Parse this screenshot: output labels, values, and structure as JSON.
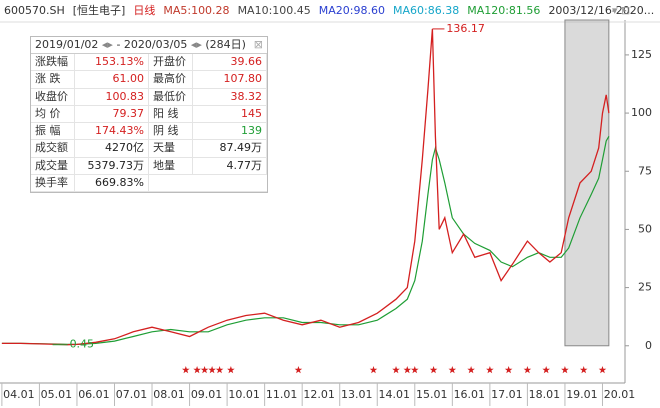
{
  "header": {
    "items": [
      {
        "text": "600570.SH",
        "color": "#333"
      },
      {
        "text": "[恒生电子]",
        "color": "#333"
      },
      {
        "text": "日线",
        "color": "#d42020"
      },
      {
        "text": "MA5:100.28",
        "color": "#c0392b"
      },
      {
        "text": "MA10:100.45",
        "color": "#444"
      },
      {
        "text": "MA20:98.60",
        "color": "#2a3fd0"
      },
      {
        "text": "MA60:86.38",
        "color": "#16a6c9"
      },
      {
        "text": "MA120:81.56",
        "color": "#1f9e35"
      },
      {
        "text": "2003/12/16-2020...",
        "color": "#333"
      }
    ]
  },
  "table": {
    "start": "2019/01/02",
    "end": "2020/03/05",
    "days": "(284日)",
    "rows": [
      [
        "涨跌幅",
        "153.13%",
        "开盘价",
        "39.66"
      ],
      [
        "涨 跌",
        "61.00",
        "最高价",
        "107.80"
      ],
      [
        "收盘价",
        "100.83",
        "最低价",
        "38.32"
      ],
      [
        "均 价",
        "79.37",
        "阳 线",
        "145"
      ],
      [
        "振 幅",
        "174.43%",
        "阴 线",
        "139"
      ],
      [
        "成交额",
        "4270亿",
        "天量",
        "87.49万"
      ],
      [
        "成交量",
        "5379.73万",
        "地量",
        "4.77万"
      ],
      [
        "换手率",
        "669.83%"
      ]
    ]
  },
  "chart_data": {
    "type": "line",
    "x": [
      2004.0,
      2004.5,
      2005.0,
      2005.5,
      2005.75,
      2006.0,
      2006.5,
      2007.0,
      2007.5,
      2008.0,
      2008.5,
      2009.0,
      2009.5,
      2010.0,
      2010.5,
      2011.0,
      2011.5,
      2012.0,
      2012.5,
      2013.0,
      2013.5,
      2014.0,
      2014.5,
      2014.8,
      2015.0,
      2015.2,
      2015.35,
      2015.47,
      2015.55,
      2015.65,
      2015.8,
      2016.0,
      2016.3,
      2016.6,
      2017.0,
      2017.3,
      2017.6,
      2018.0,
      2018.3,
      2018.6,
      2018.9,
      2019.1,
      2019.4,
      2019.7,
      2019.9,
      2020.0,
      2020.1,
      2020.17
    ],
    "values": [
      1,
      1,
      0.8,
      0.6,
      0.45,
      0.6,
      1.5,
      3,
      6,
      8,
      6,
      4,
      8,
      11,
      13,
      14,
      11,
      9,
      11,
      8,
      10,
      14,
      20,
      25,
      45,
      80,
      110,
      136.17,
      90,
      50,
      55,
      40,
      48,
      38,
      40,
      28,
      35,
      45,
      40,
      36,
      40,
      55,
      70,
      75,
      85,
      100,
      107.8,
      100
    ],
    "color": "#d42020",
    "lines": [
      {
        "color": "#1f9e35",
        "values": [
          1,
          1,
          0.9,
          0.7,
          0.6,
          0.6,
          1.0,
          2,
          4,
          6,
          7,
          6,
          6,
          9,
          11,
          12,
          12,
          10,
          10,
          9,
          9,
          11,
          16,
          20,
          28,
          45,
          65,
          80,
          85,
          80,
          70,
          55,
          48,
          44,
          41,
          36,
          34,
          38,
          40,
          38,
          38,
          42,
          55,
          65,
          72,
          80,
          88,
          90
        ]
      }
    ],
    "peak": {
      "x": 2015.47,
      "value": 136.17
    },
    "low": {
      "x": 2005.75,
      "value": 0.45
    },
    "selection": [
      2019.0,
      2020.17
    ],
    "signals": [
      2008.9,
      2009.2,
      2009.4,
      2009.6,
      2009.8,
      2010.1,
      2011.9,
      2013.9,
      2014.5,
      2014.8,
      2015.0,
      2015.5,
      2016.0,
      2016.5,
      2017.0,
      2017.5,
      2018.0,
      2018.5,
      2019.0,
      2019.5,
      2020.0
    ],
    "signal_color": "#d42020",
    "xlim": [
      2003.95,
      2020.6
    ],
    "ylim": [
      -16,
      140
    ],
    "yticks": [
      0,
      25,
      50,
      75,
      100,
      125
    ],
    "xticks": [
      {
        "value": 2004,
        "label": "04.01"
      },
      {
        "value": 2005,
        "label": "05.01"
      },
      {
        "value": 2006,
        "label": "06.01"
      },
      {
        "value": 2007,
        "label": "07.01"
      },
      {
        "value": 2008,
        "label": "08.01"
      },
      {
        "value": 2009,
        "label": "09.01"
      },
      {
        "value": 2010,
        "label": "10.01"
      },
      {
        "value": 2011,
        "label": "11.01"
      },
      {
        "value": 2012,
        "label": "12.01"
      },
      {
        "value": 2013,
        "label": "13.01"
      },
      {
        "value": 2014,
        "label": "14.01"
      },
      {
        "value": 2015,
        "label": "15.01"
      },
      {
        "value": 2016,
        "label": "16.01"
      },
      {
        "value": 2017,
        "label": "17.01"
      },
      {
        "value": 2018,
        "label": "18.01"
      },
      {
        "value": 2019,
        "label": "19.01"
      },
      {
        "value": 2020,
        "label": "20.01"
      }
    ]
  }
}
